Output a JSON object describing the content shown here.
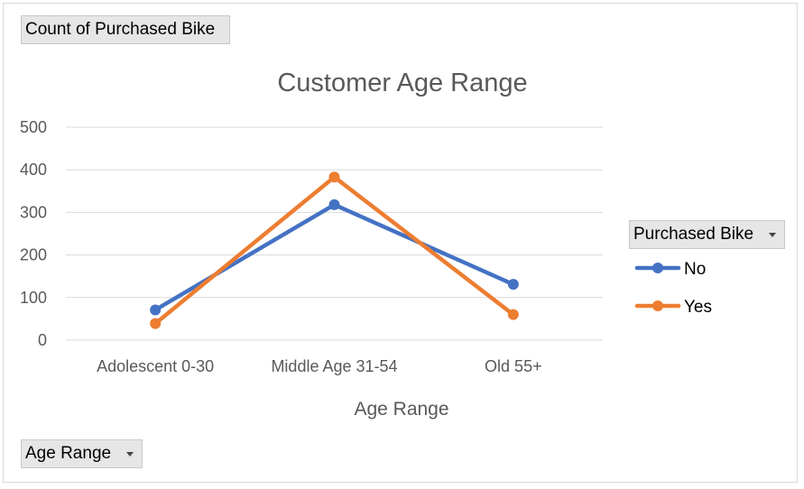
{
  "pivot": {
    "value_field": "Count of Purchased Bike",
    "axis_field": "Age Range",
    "legend_field": "Purchased Bike"
  },
  "chart_data": {
    "type": "line",
    "title": "Customer Age Range",
    "xlabel": "Age Range",
    "ylabel": "",
    "categories": [
      "Adolescent 0-30",
      "Middle Age 31-54",
      "Old 55+"
    ],
    "series": [
      {
        "name": "No",
        "values": [
          71,
          318,
          131
        ],
        "color": "#4472C4"
      },
      {
        "name": "Yes",
        "values": [
          39,
          383,
          60
        ],
        "color": "#ED7D31"
      }
    ],
    "ylim": [
      0,
      500
    ],
    "yticks": [
      0,
      100,
      200,
      300,
      400,
      500
    ],
    "grid": true,
    "legend": "right"
  }
}
